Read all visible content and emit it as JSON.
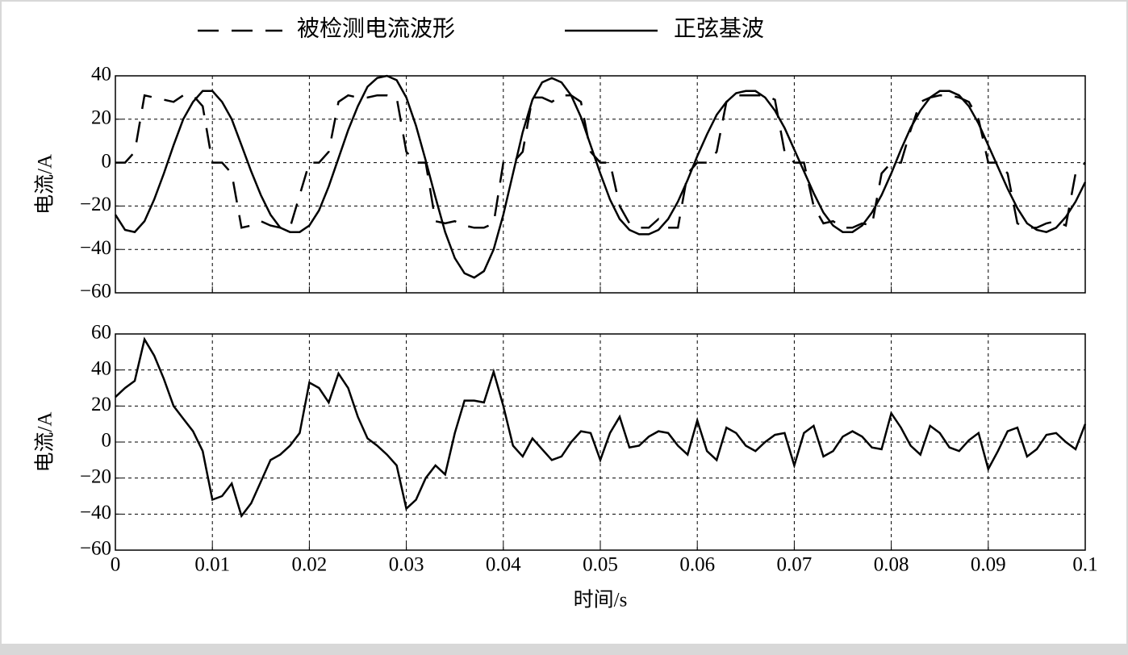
{
  "chart_data": [
    {
      "type": "line",
      "legend": "top",
      "ylabel": "电流/A",
      "grid": true,
      "x": [
        0,
        0.001,
        0.002,
        0.003,
        0.004,
        0.005,
        0.006,
        0.007,
        0.008,
        0.009,
        0.01,
        0.011,
        0.012,
        0.013,
        0.014,
        0.015,
        0.016,
        0.017,
        0.018,
        0.019,
        0.02,
        0.021,
        0.022,
        0.023,
        0.024,
        0.025,
        0.026,
        0.027,
        0.028,
        0.029,
        0.03,
        0.031,
        0.032,
        0.033,
        0.034,
        0.035,
        0.036,
        0.037,
        0.038,
        0.039,
        0.04,
        0.041,
        0.042,
        0.043,
        0.044,
        0.045,
        0.046,
        0.047,
        0.048,
        0.049,
        0.05,
        0.051,
        0.052,
        0.053,
        0.054,
        0.055,
        0.056,
        0.057,
        0.058,
        0.059,
        0.06,
        0.061,
        0.062,
        0.063,
        0.064,
        0.065,
        0.066,
        0.067,
        0.068,
        0.069,
        0.07,
        0.071,
        0.072,
        0.073,
        0.074,
        0.075,
        0.076,
        0.077,
        0.078,
        0.079,
        0.08,
        0.081,
        0.082,
        0.083,
        0.084,
        0.085,
        0.086,
        0.087,
        0.088,
        0.089,
        0.09,
        0.091,
        0.092,
        0.093,
        0.094,
        0.095,
        0.096,
        0.097,
        0.098,
        0.099,
        0.1
      ],
      "series": [
        {
          "name": "被检测电流波形",
          "color": "#000000",
          "dash": "dashed",
          "values": [
            0,
            0,
            5,
            31,
            30,
            29,
            28,
            31,
            31,
            26,
            0,
            0,
            -5,
            -30,
            -29,
            -27,
            -29,
            -30,
            -30,
            -15,
            0,
            0,
            5,
            28,
            31,
            30,
            30,
            31,
            31,
            30,
            5,
            0,
            0,
            -27,
            -28,
            -27,
            -29,
            -30,
            -30,
            -28,
            0,
            0,
            5,
            30,
            30,
            28,
            31,
            31,
            28,
            5,
            0,
            0,
            -20,
            -28,
            -30,
            -30,
            -26,
            -30,
            -30,
            -5,
            0,
            0,
            5,
            28,
            31,
            31,
            31,
            31,
            29,
            5,
            0,
            0,
            -20,
            -28,
            -27,
            -30,
            -30,
            -28,
            -29,
            -5,
            0,
            0,
            15,
            28,
            30,
            31,
            31,
            30,
            28,
            20,
            0,
            0,
            -5,
            -28,
            -30,
            -30,
            -28,
            -27,
            -29,
            -5,
            0
          ]
        },
        {
          "name": "正弦基波",
          "color": "#000000",
          "dash": "solid",
          "values": [
            -24,
            -31,
            -32,
            -27,
            -17,
            -5,
            8,
            20,
            28,
            33,
            33,
            28,
            20,
            8,
            -4,
            -15,
            -24,
            -30,
            -32,
            -32,
            -29,
            -22,
            -11,
            2,
            15,
            26,
            35,
            39,
            40,
            38,
            30,
            17,
            1,
            -16,
            -32,
            -44,
            -51,
            -53,
            -50,
            -40,
            -24,
            -5,
            14,
            29,
            37,
            39,
            37,
            31,
            21,
            8,
            -5,
            -17,
            -26,
            -31,
            -33,
            -33,
            -31,
            -26,
            -18,
            -8,
            3,
            13,
            22,
            28,
            32,
            33,
            33,
            30,
            24,
            16,
            6,
            -4,
            -14,
            -23,
            -29,
            -32,
            -32,
            -29,
            -23,
            -15,
            -5,
            6,
            16,
            24,
            30,
            33,
            33,
            31,
            26,
            18,
            8,
            -2,
            -12,
            -21,
            -28,
            -31,
            -32,
            -30,
            -25,
            -18,
            -9
          ]
        }
      ],
      "xlim": [
        0,
        0.1
      ],
      "xticks": [
        0,
        0.01,
        0.02,
        0.03,
        0.04,
        0.05,
        0.06,
        0.07,
        0.08,
        0.09,
        0.1
      ],
      "ylim": [
        -60,
        40
      ],
      "yticks": [
        {
          "value": -60,
          "label": "−60"
        },
        {
          "value": -40,
          "label": "−40"
        },
        {
          "value": -20,
          "label": "−20"
        },
        0,
        20,
        40
      ]
    },
    {
      "type": "line",
      "ylabel": "电流/A",
      "xlabel": "时间/s",
      "grid": true,
      "x": [
        0,
        0.001,
        0.002,
        0.003,
        0.004,
        0.005,
        0.006,
        0.007,
        0.008,
        0.009,
        0.01,
        0.011,
        0.012,
        0.013,
        0.014,
        0.015,
        0.016,
        0.017,
        0.018,
        0.019,
        0.02,
        0.021,
        0.022,
        0.023,
        0.024,
        0.025,
        0.026,
        0.027,
        0.028,
        0.029,
        0.03,
        0.031,
        0.032,
        0.033,
        0.034,
        0.035,
        0.036,
        0.037,
        0.038,
        0.039,
        0.04,
        0.041,
        0.042,
        0.043,
        0.044,
        0.045,
        0.046,
        0.047,
        0.048,
        0.049,
        0.05,
        0.051,
        0.052,
        0.053,
        0.054,
        0.055,
        0.056,
        0.057,
        0.058,
        0.059,
        0.06,
        0.061,
        0.062,
        0.063,
        0.064,
        0.065,
        0.066,
        0.067,
        0.068,
        0.069,
        0.07,
        0.071,
        0.072,
        0.073,
        0.074,
        0.075,
        0.076,
        0.077,
        0.078,
        0.079,
        0.08,
        0.081,
        0.082,
        0.083,
        0.084,
        0.085,
        0.086,
        0.087,
        0.088,
        0.089,
        0.09,
        0.091,
        0.092,
        0.093,
        0.094,
        0.095,
        0.096,
        0.097,
        0.098,
        0.099,
        0.1
      ],
      "series": [
        {
          "color": "#000000",
          "dash": "solid",
          "values": [
            25,
            30,
            34,
            57,
            48,
            35,
            20,
            13,
            6,
            -5,
            -32,
            -30,
            -23,
            -41,
            -34,
            -22,
            -10,
            -7,
            -2,
            5,
            33,
            30,
            22,
            38,
            30,
            14,
            2,
            -2,
            -7,
            -13,
            -37,
            -32,
            -20,
            -13,
            -18,
            5,
            23,
            23,
            22,
            39,
            20,
            -2,
            -8,
            2,
            -4,
            -10,
            -8,
            0,
            6,
            5,
            -10,
            5,
            14,
            -3,
            -2,
            3,
            6,
            5,
            -2,
            -7,
            12,
            -5,
            -10,
            8,
            5,
            -2,
            -5,
            0,
            4,
            5,
            -13,
            5,
            9,
            -8,
            -5,
            3,
            6,
            3,
            -3,
            -4,
            16,
            8,
            -2,
            -7,
            9,
            5,
            -3,
            -5,
            1,
            5,
            -15,
            -5,
            6,
            8,
            -8,
            -4,
            4,
            5,
            0,
            -4,
            10
          ]
        }
      ],
      "xlim": [
        0,
        0.1
      ],
      "xticks": [
        0,
        0.01,
        0.02,
        0.03,
        0.04,
        0.05,
        0.06,
        0.07,
        0.08,
        0.09,
        0.1
      ],
      "ylim": [
        -60,
        60
      ],
      "yticks": [
        {
          "value": -60,
          "label": "−60"
        },
        {
          "value": -40,
          "label": "−40"
        },
        {
          "value": -20,
          "label": "−20"
        },
        0,
        20,
        40,
        60
      ]
    }
  ]
}
